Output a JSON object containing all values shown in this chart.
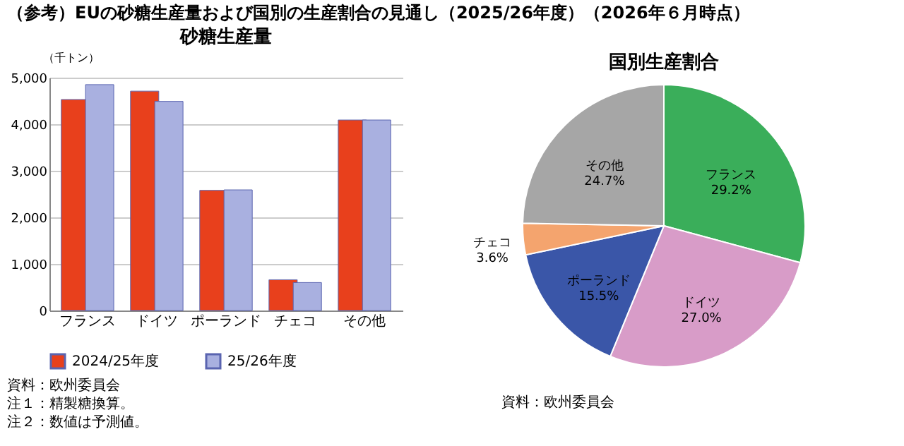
{
  "chart_data": [
    {
      "type": "bar",
      "title": "（参考）EUの砂糖生産量および国別の生産割合の見通し（2025/26年度）（2026年６月時点）",
      "subtitle": "砂糖生産量",
      "ylabel": "（千トン）",
      "categories": [
        "フランス",
        "ドイツ",
        "ポーランド",
        "チェコ",
        "その他"
      ],
      "series": [
        {
          "name": "2024/25年度",
          "color": "#e8401c",
          "values": [
            4530,
            4710,
            2580,
            660,
            4090
          ]
        },
        {
          "name": "25/26年度",
          "color": "#a9b0e0",
          "values": [
            4850,
            4490,
            2590,
            600,
            4090
          ]
        }
      ],
      "ylim": [
        0,
        5000
      ],
      "yticks": [
        {
          "value": 0,
          "label": "0"
        },
        {
          "value": 1000,
          "label": "1,000"
        },
        {
          "value": 2000,
          "label": "2,000"
        },
        {
          "value": 3000,
          "label": "3,000"
        },
        {
          "value": 4000,
          "label": "4,000"
        },
        {
          "value": 5000,
          "label": "5,000"
        }
      ],
      "grid": "y",
      "legend": "bottom",
      "annotations": [
        "資料：欧州委員会",
        "注１：精製糖換算。",
        "注２：数値は予測値。"
      ]
    },
    {
      "type": "pie",
      "title": "国別生産割合",
      "categories": [
        "フランス",
        "ドイツ",
        "ポーランド",
        "チェコ",
        "その他"
      ],
      "values": [
        29.2,
        27.0,
        15.5,
        3.6,
        24.7
      ],
      "colors": [
        "#3aae5a",
        "#d89cc8",
        "#3a56a8",
        "#f4a46e",
        "#a6a6a6"
      ],
      "value_labels": [
        "29.2%",
        "27.0%",
        "15.5%",
        "3.6%",
        "24.7%"
      ],
      "annotations": [
        "資料：欧州委員会"
      ]
    }
  ]
}
